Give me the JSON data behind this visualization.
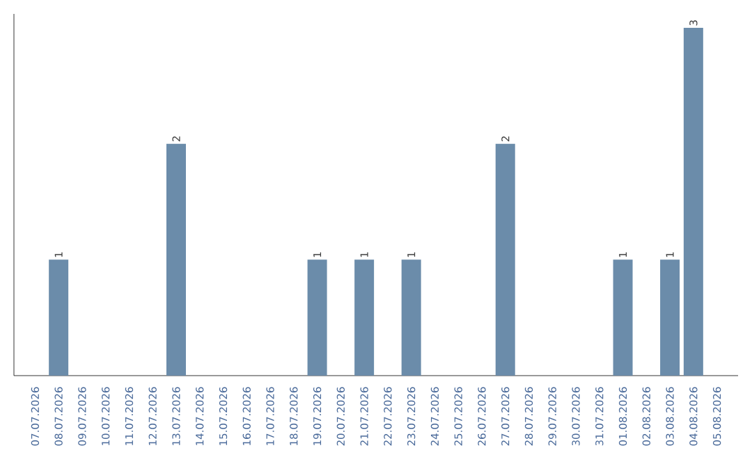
{
  "chart_data": {
    "type": "bar",
    "categories": [
      "07.07.2026",
      "08.07.2026",
      "09.07.2026",
      "10.07.2026",
      "11.07.2026",
      "12.07.2026",
      "13.07.2026",
      "14.07.2026",
      "15.07.2026",
      "16.07.2026",
      "17.07.2026",
      "18.07.2026",
      "19.07.2026",
      "20.07.2026",
      "21.07.2026",
      "22.07.2026",
      "23.07.2026",
      "24.07.2026",
      "25.07.2026",
      "26.07.2026",
      "27.07.2026",
      "28.07.2026",
      "29.07.2026",
      "30.07.2026",
      "31.07.2026",
      "01.08.2026",
      "02.08.2026",
      "03.08.2026",
      "04.08.2026",
      "05.08.2026"
    ],
    "values": [
      0,
      1,
      0,
      0,
      0,
      0,
      2,
      0,
      0,
      0,
      0,
      0,
      1,
      0,
      1,
      0,
      1,
      0,
      0,
      0,
      2,
      0,
      0,
      0,
      0,
      1,
      0,
      1,
      3,
      0
    ],
    "value_labels": [
      null,
      "1",
      null,
      null,
      null,
      null,
      "2",
      null,
      null,
      null,
      null,
      null,
      "1",
      null,
      "1",
      null,
      "1",
      null,
      null,
      null,
      "2",
      null,
      null,
      null,
      null,
      "1",
      null,
      "1",
      "3",
      null
    ],
    "color": "#6b8caa",
    "ylim": [
      0,
      3.12
    ],
    "tick_labels": "x"
  }
}
